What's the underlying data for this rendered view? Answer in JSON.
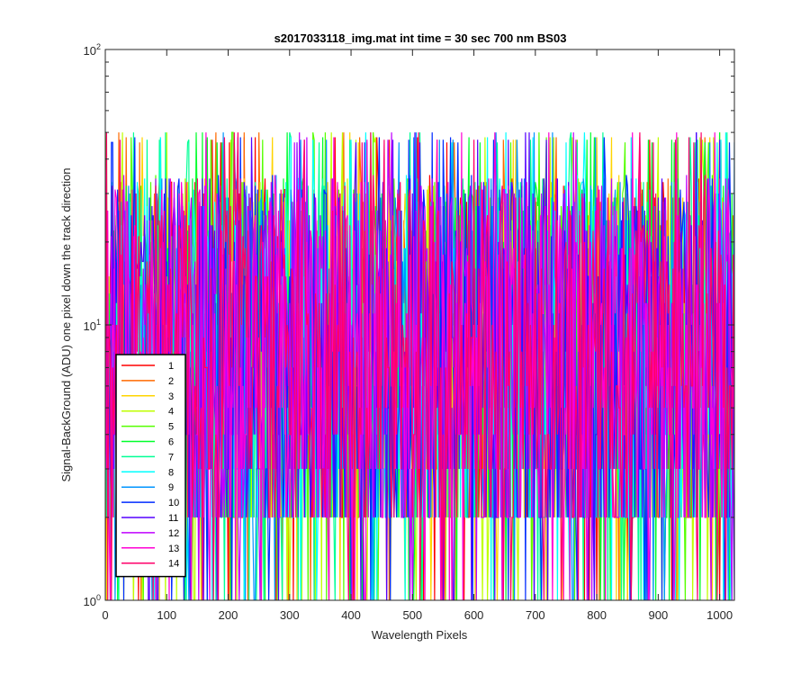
{
  "chart_data": {
    "type": "line",
    "title": "s2017033118_img.mat int time = 30 sec  700 nm BS03",
    "xlabel": "Wavelength Pixels",
    "ylabel": "Signal-BackGround (ADU) one pixel down the track direction",
    "xlim": [
      0,
      1024
    ],
    "ylim": [
      1,
      100
    ],
    "yscale": "log",
    "x_ticks": [
      0,
      100,
      200,
      300,
      400,
      500,
      600,
      700,
      800,
      900,
      1000
    ],
    "y_ticks": [
      {
        "value": 1,
        "base": "10",
        "exp": "0"
      },
      {
        "value": 10,
        "base": "10",
        "exp": "1"
      },
      {
        "value": 100,
        "base": "10",
        "exp": "2"
      }
    ],
    "grid": false,
    "legend_position": "lower-left",
    "typical_range": [
      2,
      35
    ],
    "peak_values": [
      48,
      50,
      47,
      46
    ],
    "series": [
      {
        "name": "1",
        "color": "#FF0000"
      },
      {
        "name": "2",
        "color": "#FF6A00"
      },
      {
        "name": "3",
        "color": "#FFD400"
      },
      {
        "name": "4",
        "color": "#BFFF00"
      },
      {
        "name": "5",
        "color": "#55FF00"
      },
      {
        "name": "6",
        "color": "#00FF2B"
      },
      {
        "name": "7",
        "color": "#00FF95"
      },
      {
        "name": "8",
        "color": "#00FFFF"
      },
      {
        "name": "9",
        "color": "#0095FF"
      },
      {
        "name": "10",
        "color": "#002BFF"
      },
      {
        "name": "11",
        "color": "#5500FF"
      },
      {
        "name": "12",
        "color": "#BF00FF"
      },
      {
        "name": "13",
        "color": "#FF00D4"
      },
      {
        "name": "14",
        "color": "#FF006A"
      }
    ]
  }
}
